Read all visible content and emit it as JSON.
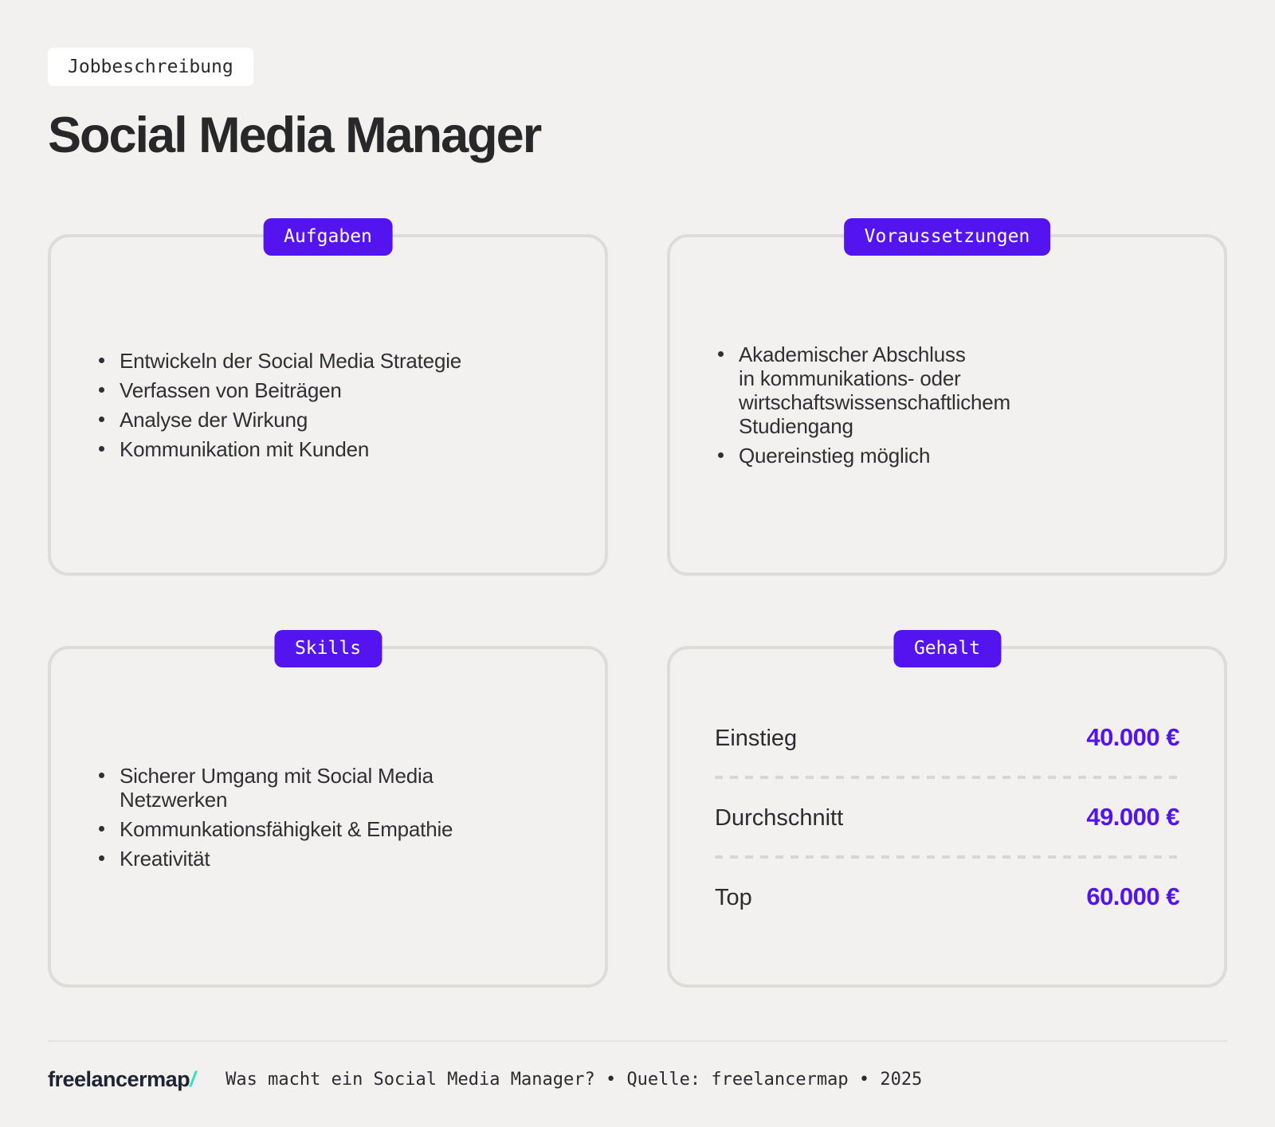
{
  "header": {
    "tag": "Jobbeschreibung",
    "title": "Social Media Manager"
  },
  "cards": [
    {
      "badge": "Aufgaben",
      "items": [
        "Entwickeln der Social Media Strategie",
        "Verfassen von Beiträgen",
        "Analyse der Wirkung",
        "Kommunikation mit Kunden"
      ]
    },
    {
      "badge": "Voraussetzungen",
      "items": [
        "Akademischer Abschluss\nin kommunikations- oder\nwirtschaftswissenschaftlichem\nStudiengang",
        "Quereinstieg möglich"
      ]
    },
    {
      "badge": "Skills",
      "items": [
        "Sicherer Umgang mit Social Media\nNetzwerken",
        "Kommunkationsfähigkeit & Empathie",
        "Kreativität"
      ]
    },
    {
      "badge": "Gehalt",
      "rows": [
        {
          "label": "Einstieg",
          "value": "40.000 €"
        },
        {
          "label": "Durchschnitt",
          "value": "49.000 €"
        },
        {
          "label": "Top",
          "value": "60.000 €"
        }
      ]
    }
  ],
  "footer": {
    "logo_text": "freelancermap",
    "logo_slash": "/",
    "caption": "Was macht ein Social Media Manager? • Quelle: freelancermap • 2025"
  },
  "colors": {
    "background": "#f2f1ef",
    "accent_purple": "#5414f0",
    "brand_teal": "#35e0c4",
    "card_border": "#dddcd9",
    "text_dark": "#2f2f34"
  }
}
